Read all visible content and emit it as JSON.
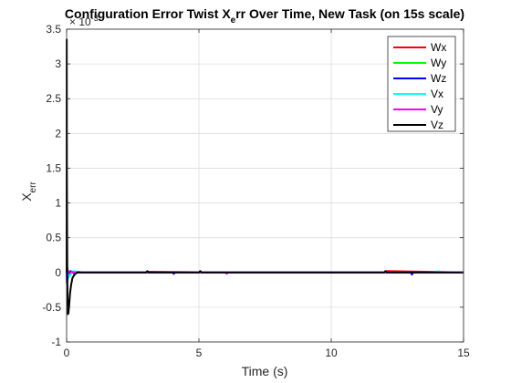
{
  "chart_data": {
    "type": "line",
    "title": "Configuration Error Twist X",
    "title_sub": "e",
    "title_rest": "rr Over Time, New Task (on 15s scale)",
    "xlabel": "Time (s)",
    "ylabel_main": "X",
    "ylabel_sub": "err",
    "exponent_label": "× 10",
    "exponent_power": "-3",
    "xlim": [
      0,
      15
    ],
    "ylim": [
      -1,
      3.5
    ],
    "xticks": [
      0,
      5,
      10,
      15
    ],
    "yticks": [
      -1,
      -0.5,
      0,
      0.5,
      1,
      1.5,
      2,
      2.5,
      3,
      3.5
    ],
    "xtick_labels": [
      "0",
      "5",
      "10",
      "15"
    ],
    "ytick_labels": [
      "-1",
      "-0.5",
      "0",
      "0.5",
      "1",
      "1.5",
      "2",
      "2.5",
      "3",
      "3.5"
    ],
    "grid": true,
    "legend_position": "top-right",
    "series": [
      {
        "name": "Wx",
        "color": "#ff0000",
        "x": [
          0,
          0.01,
          0.03,
          0.06,
          0.1,
          0.15,
          0.2,
          0.3,
          0.5,
          3,
          3.1,
          6,
          9,
          12,
          12.1,
          15
        ],
        "y": [
          0,
          0.05,
          0.04,
          -0.02,
          -0.01,
          0.01,
          0,
          0,
          0,
          0,
          0.01,
          0,
          0,
          0,
          0.02,
          0
        ]
      },
      {
        "name": "Wy",
        "color": "#00ff00",
        "x": [
          0,
          0.01,
          0.03,
          0.06,
          0.1,
          0.15,
          0.2,
          0.3,
          0.5,
          5,
          10,
          15
        ],
        "y": [
          0,
          -0.03,
          -0.05,
          -0.03,
          -0.01,
          0,
          0.01,
          0,
          0,
          0,
          0,
          0
        ]
      },
      {
        "name": "Wz",
        "color": "#0000ff",
        "x": [
          0,
          0.01,
          0.03,
          0.06,
          0.1,
          0.15,
          0.2,
          0.3,
          0.4,
          0.6,
          4,
          4.05,
          4.1,
          13,
          13.05,
          13.1,
          15
        ],
        "y": [
          0,
          -0.15,
          -0.1,
          -0.05,
          -0.02,
          0.02,
          0.01,
          -0.02,
          0.01,
          0,
          0,
          -0.02,
          0,
          0,
          -0.03,
          0,
          0
        ]
      },
      {
        "name": "Vx",
        "color": "#00ffff",
        "x": [
          0,
          0.01,
          0.03,
          0.06,
          0.1,
          0.15,
          0.2,
          0.3,
          0.5,
          14,
          14.05,
          14.1,
          15
        ],
        "y": [
          0,
          0.1,
          0.05,
          -0.03,
          -0.06,
          -0.03,
          0.01,
          0.02,
          0,
          0,
          0.02,
          0,
          0
        ]
      },
      {
        "name": "Vy",
        "color": "#ff00ff",
        "x": [
          0,
          0.01,
          0.03,
          0.06,
          0.1,
          0.15,
          0.2,
          0.3,
          0.5,
          6,
          6.05,
          6.1,
          15
        ],
        "y": [
          0,
          0.08,
          0.05,
          0.02,
          -0.01,
          0,
          0.01,
          0,
          0,
          0,
          -0.02,
          0,
          0
        ]
      },
      {
        "name": "Vz",
        "color": "#000000",
        "x": [
          0,
          0.005,
          0.01,
          0.02,
          0.03,
          0.05,
          0.07,
          0.1,
          0.13,
          0.17,
          0.22,
          0.3,
          0.4,
          0.6,
          1,
          3,
          3.05,
          3.1,
          5,
          5.05,
          5.1,
          8,
          12,
          12.05,
          12.1,
          15
        ],
        "y": [
          0,
          3.35,
          1.5,
          0.5,
          -0.2,
          -0.6,
          -0.58,
          -0.45,
          -0.3,
          -0.18,
          -0.08,
          -0.03,
          0,
          0,
          0,
          0,
          0.02,
          0,
          0,
          0.02,
          0,
          0,
          0,
          0.02,
          0,
          0
        ]
      }
    ]
  }
}
